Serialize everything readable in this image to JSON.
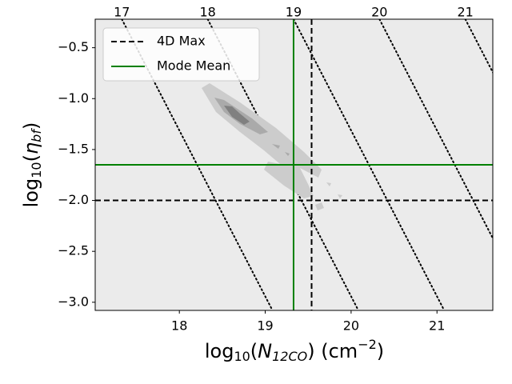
{
  "chart_data": {
    "type": "reference-lines",
    "xlabel": [
      "log",
      "10",
      "(",
      "N",
      "12CO",
      ") (cm",
      "−2",
      ")"
    ],
    "ylabel": [
      "log",
      "10",
      "(",
      "η",
      "bf",
      ")"
    ],
    "xlim": [
      17.02,
      21.65
    ],
    "ylim": [
      -3.08,
      -0.22
    ],
    "xticks": [
      18,
      19,
      20,
      21
    ],
    "yticks": [
      {
        "value": -0.5,
        "label": "−0.5"
      },
      {
        "value": -1.0,
        "label": "−1.0"
      },
      {
        "value": -1.5,
        "label": "−1.5"
      },
      {
        "value": -2.0,
        "label": "−2.0"
      },
      {
        "value": -2.5,
        "label": "−2.5"
      },
      {
        "value": -3.0,
        "label": "−3.0"
      }
    ],
    "x2lim": [
      16.69,
      21.32
    ],
    "x2ticks": [
      17,
      18,
      19,
      20,
      21
    ],
    "diagonal_slope": -1.63,
    "legend": "upper left",
    "series": [
      {
        "name": "4D Max",
        "color": "#000000",
        "style": "dashed",
        "x": 19.54,
        "y": -2.0
      },
      {
        "name": "Mode Mean",
        "color": "#008000",
        "style": "solid",
        "x": 19.33,
        "y": -1.65
      }
    ]
  }
}
